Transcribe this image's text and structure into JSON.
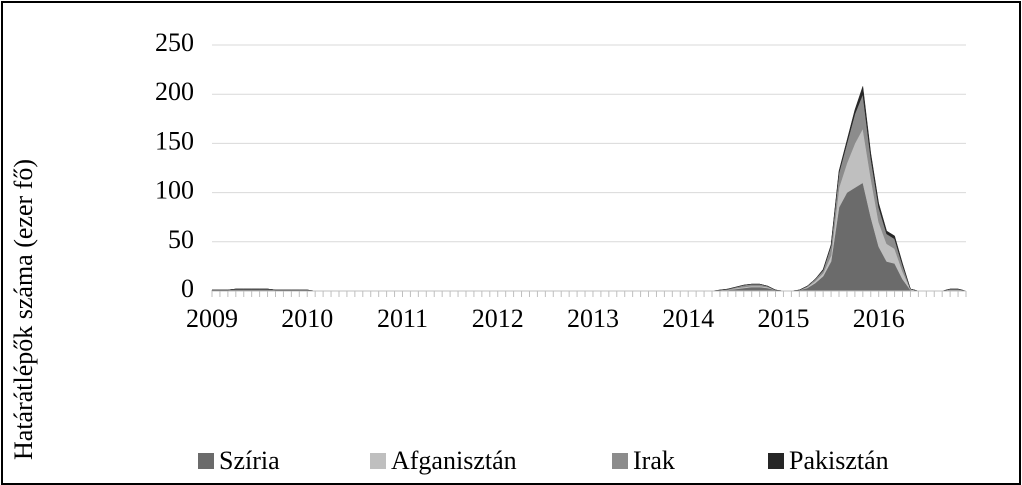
{
  "chart_data": {
    "type": "stacked_area",
    "ylabel": "Határátlépők száma (ezer fő)",
    "categories": [
      "2009",
      null,
      null,
      null,
      null,
      null,
      null,
      null,
      null,
      null,
      null,
      null,
      "2010",
      null,
      null,
      null,
      null,
      null,
      null,
      null,
      null,
      null,
      null,
      null,
      "2011",
      null,
      null,
      null,
      null,
      null,
      null,
      null,
      null,
      null,
      null,
      null,
      "2012",
      null,
      null,
      null,
      null,
      null,
      null,
      null,
      null,
      null,
      null,
      null,
      "2013",
      null,
      null,
      null,
      null,
      null,
      null,
      null,
      null,
      null,
      null,
      null,
      "2014",
      null,
      null,
      null,
      null,
      null,
      null,
      null,
      null,
      null,
      null,
      null,
      "2015",
      null,
      null,
      null,
      null,
      null,
      null,
      null,
      null,
      null,
      null,
      null,
      "2016",
      null,
      null,
      null,
      null,
      null,
      null,
      null,
      null,
      null,
      null,
      null
    ],
    "series": [
      {
        "name": "Szíria",
        "color": "#6b6b6b",
        "values": [
          1,
          1,
          1,
          2,
          2,
          2,
          2,
          2,
          1,
          1,
          1,
          1,
          1,
          0,
          0,
          0,
          0,
          0,
          0,
          0,
          0,
          0,
          0,
          0,
          0,
          0,
          0,
          0,
          0,
          0,
          0,
          0,
          0,
          0,
          0,
          0,
          0,
          0,
          0,
          0,
          0,
          0,
          0,
          0,
          0,
          0,
          0,
          0,
          0,
          0,
          0,
          0,
          0,
          0,
          0,
          0,
          0,
          0,
          0,
          0,
          0,
          0,
          0,
          0,
          0,
          1,
          2,
          3,
          4,
          4,
          3,
          1,
          0,
          0,
          1,
          3,
          8,
          15,
          30,
          85,
          100,
          105,
          110,
          75,
          45,
          30,
          28,
          12,
          1,
          0,
          0,
          0,
          0,
          1,
          1,
          0
        ]
      },
      {
        "name": "Afganisztán",
        "color": "#bfbfbf",
        "values": [
          0,
          0,
          0,
          0,
          0,
          0,
          0,
          0,
          0,
          0,
          0,
          0,
          0,
          0,
          0,
          0,
          0,
          0,
          0,
          0,
          0,
          0,
          0,
          0,
          0,
          0,
          0,
          0,
          0,
          0,
          0,
          0,
          0,
          0,
          0,
          0,
          0,
          0,
          0,
          0,
          0,
          0,
          0,
          0,
          0,
          0,
          0,
          0,
          0,
          0,
          0,
          0,
          0,
          0,
          0,
          0,
          0,
          0,
          0,
          0,
          0,
          0,
          0,
          0,
          0,
          0,
          1,
          1,
          1,
          1,
          1,
          0,
          0,
          0,
          0,
          1,
          2,
          3,
          6,
          20,
          30,
          45,
          55,
          40,
          25,
          18,
          15,
          8,
          1,
          0,
          0,
          0,
          0,
          0,
          0,
          0
        ]
      },
      {
        "name": "Irak",
        "color": "#8c8c8c",
        "values": [
          0,
          0,
          0,
          0,
          0,
          0,
          0,
          0,
          0,
          0,
          0,
          0,
          0,
          0,
          0,
          0,
          0,
          0,
          0,
          0,
          0,
          0,
          0,
          0,
          0,
          0,
          0,
          0,
          0,
          0,
          0,
          0,
          0,
          0,
          0,
          0,
          0,
          0,
          0,
          0,
          0,
          0,
          0,
          0,
          0,
          0,
          0,
          0,
          0,
          0,
          0,
          0,
          0,
          0,
          0,
          0,
          0,
          0,
          0,
          0,
          0,
          0,
          0,
          0,
          1,
          1,
          1,
          2,
          2,
          2,
          1,
          0,
          0,
          0,
          0,
          1,
          2,
          3,
          10,
          15,
          20,
          30,
          35,
          20,
          15,
          10,
          10,
          6,
          0,
          0,
          0,
          0,
          0,
          1,
          1,
          0
        ]
      },
      {
        "name": "Pakisztán",
        "color": "#262626",
        "values": [
          0,
          0,
          0,
          0,
          0,
          0,
          0,
          0,
          0,
          0,
          0,
          0,
          0,
          0,
          0,
          0,
          0,
          0,
          0,
          0,
          0,
          0,
          0,
          0,
          0,
          0,
          0,
          0,
          0,
          0,
          0,
          0,
          0,
          0,
          0,
          0,
          0,
          0,
          0,
          0,
          0,
          0,
          0,
          0,
          0,
          0,
          0,
          0,
          0,
          0,
          0,
          0,
          0,
          0,
          0,
          0,
          0,
          0,
          0,
          0,
          0,
          0,
          0,
          0,
          0,
          0,
          0,
          0,
          0,
          0,
          0,
          0,
          0,
          0,
          0,
          0,
          0,
          1,
          1,
          2,
          3,
          4,
          8,
          5,
          4,
          3,
          3,
          2,
          0,
          0,
          0,
          0,
          0,
          0,
          0,
          0
        ]
      }
    ],
    "ylim": [
      0,
      250
    ],
    "yticks": [
      0,
      50,
      100,
      150,
      200,
      250
    ],
    "grid": true,
    "legend": "bottom"
  }
}
